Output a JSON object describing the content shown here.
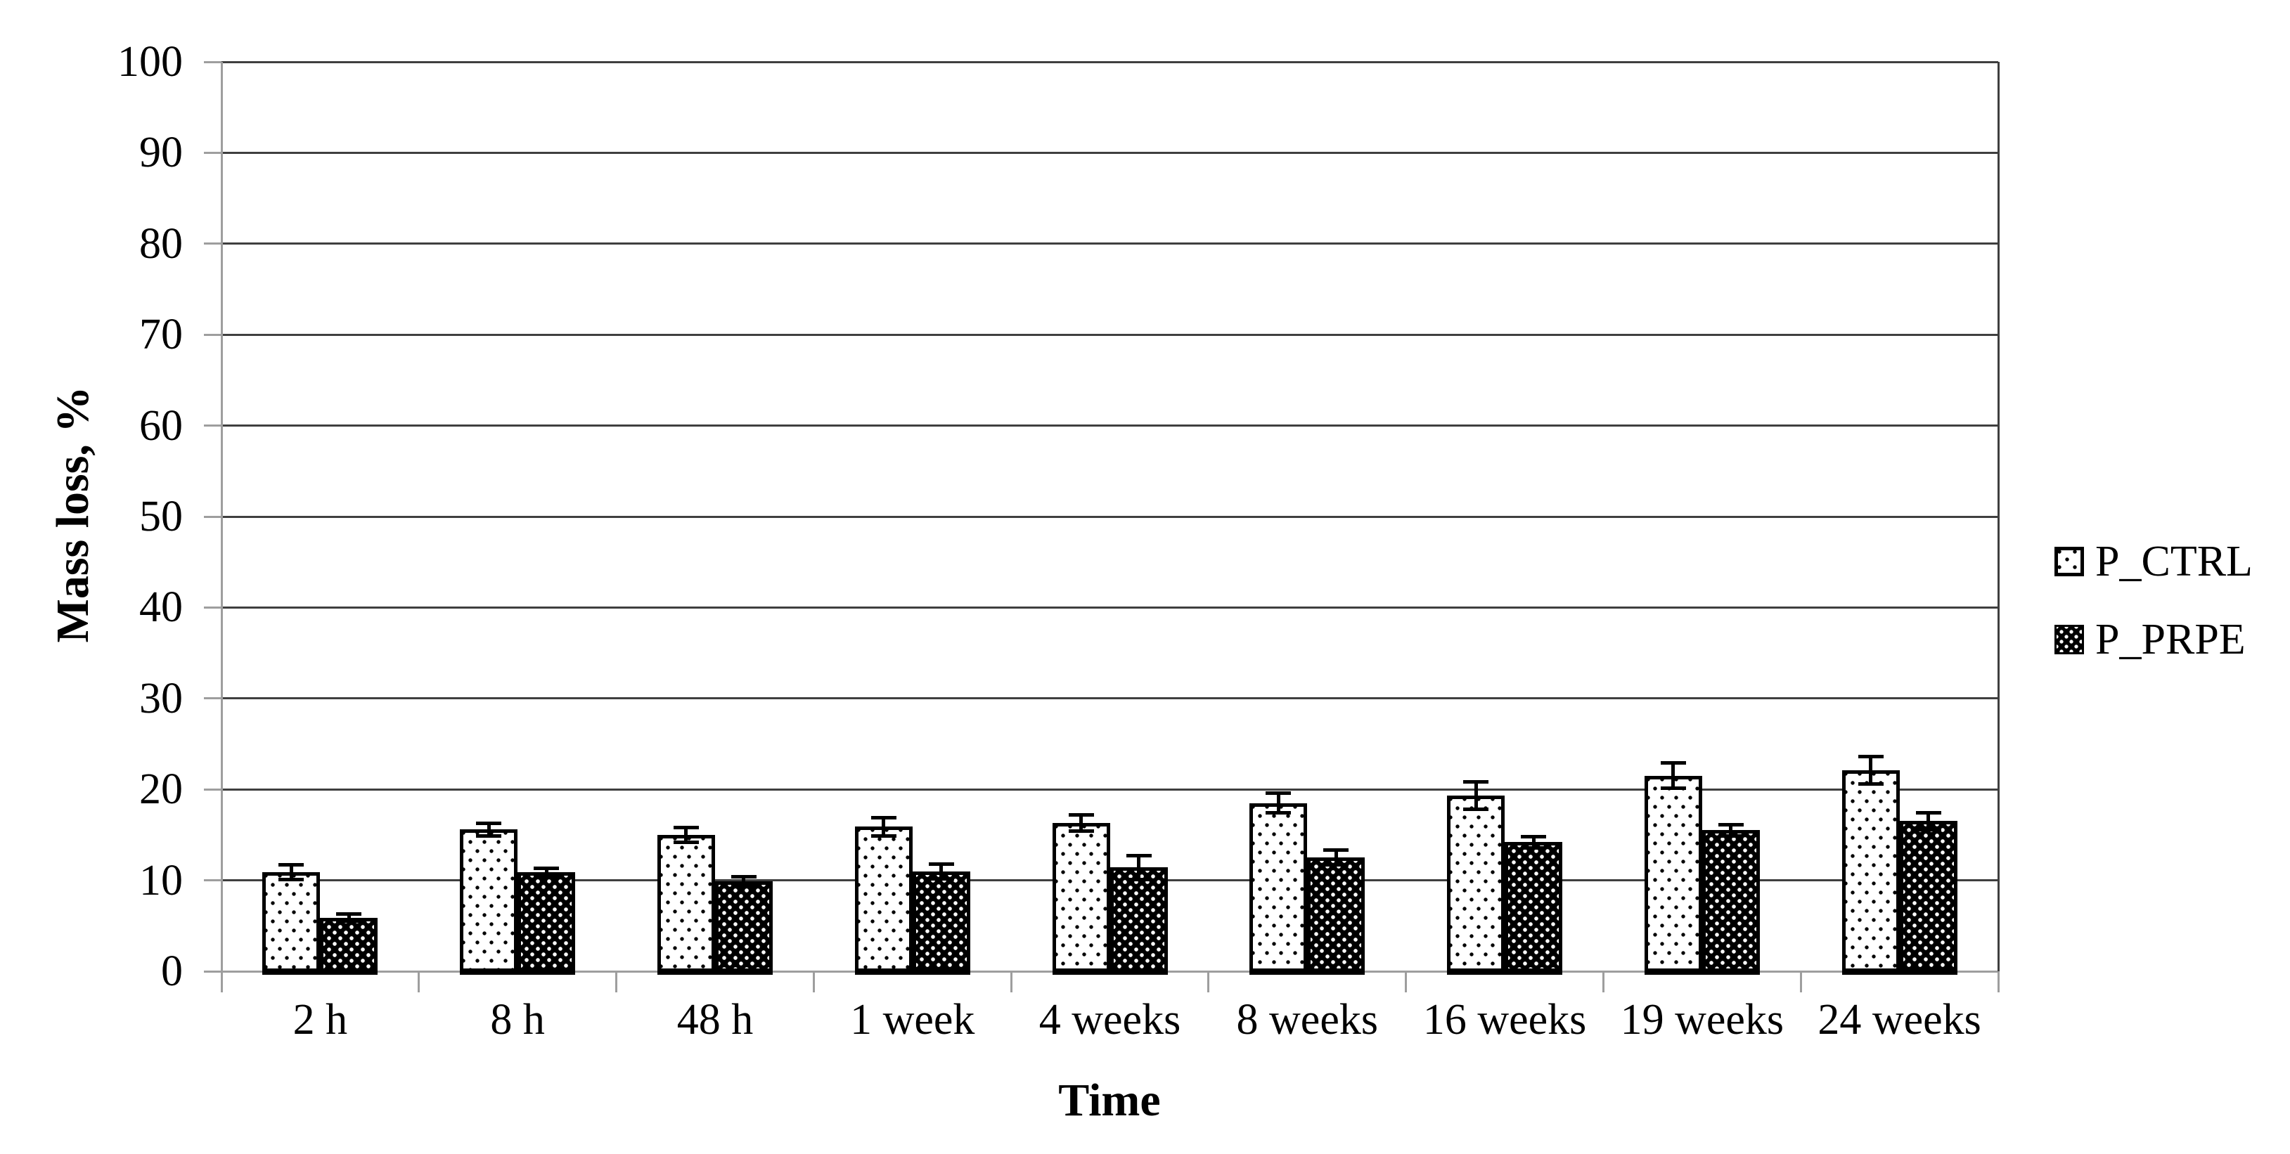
{
  "chart_data": {
    "type": "bar",
    "title": "",
    "xlabel": "Time",
    "ylabel": "Mass loss, %",
    "ylim": [
      0,
      100
    ],
    "ytick_step": 10,
    "yticks": [
      0,
      10,
      20,
      30,
      40,
      50,
      60,
      70,
      80,
      90,
      100
    ],
    "categories": [
      "2 h",
      "8 h",
      "48 h",
      "1 week",
      "4 weeks",
      "8 weeks",
      "16 weeks",
      "19 weeks",
      "24 weeks"
    ],
    "series": [
      {
        "name": "P_CTRL",
        "pattern": "black-dots-on-white",
        "values": [
          10.9,
          15.6,
          15.0,
          15.9,
          16.3,
          18.5,
          19.3,
          21.5,
          22.1
        ],
        "errors": [
          0.8,
          0.7,
          0.8,
          1.0,
          0.9,
          1.1,
          1.5,
          1.4,
          1.5
        ]
      },
      {
        "name": "P_PRPE",
        "pattern": "white-dots-on-black",
        "values": [
          5.9,
          10.9,
          9.9,
          11.0,
          11.4,
          12.5,
          14.2,
          15.5,
          16.5
        ],
        "errors": [
          0.4,
          0.4,
          0.5,
          0.8,
          1.3,
          0.8,
          0.6,
          0.6,
          0.9
        ]
      }
    ],
    "error_bars": "plus-minus",
    "grid": true,
    "legend_position": "right",
    "colors": {
      "gridline": "#3f3f3f",
      "axis_line": "#9e9e9e",
      "bar_outline": "#000000",
      "ctrl_fill": "#ffffff",
      "prpe_fill": "#000000",
      "text": "#000000",
      "background": "#ffffff"
    }
  }
}
